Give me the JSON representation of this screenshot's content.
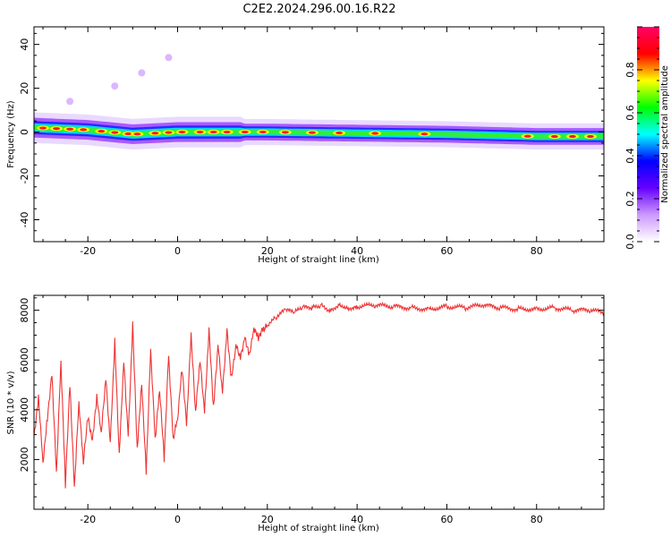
{
  "title": "C2E2.2024.296.00.16.R22",
  "chart_data": [
    {
      "type": "heatmap",
      "xlabel": "Height of straight line (km)",
      "ylabel": "Frequency (Hz)",
      "xlim": [
        -32,
        95
      ],
      "ylim": [
        -50,
        48
      ],
      "xticks": [
        -20,
        0,
        20,
        40,
        60,
        80
      ],
      "yticks": [
        -40,
        -20,
        0,
        20,
        40
      ],
      "colorbar": {
        "label": "Normalized spectral amplitude",
        "range": [
          0.0,
          1.0
        ],
        "ticks": [
          "0.0",
          "0.2",
          "0.4",
          "0.6",
          "0.8"
        ],
        "tick_values": [
          0.0,
          0.2,
          0.4,
          0.6,
          0.8
        ],
        "colormap": [
          "#ffffff",
          "#cc99ff",
          "#6600ff",
          "#0000ff",
          "#00ffff",
          "#00ff00",
          "#ffff00",
          "#ff0000",
          "#ff0066"
        ]
      },
      "ridge": {
        "description_free": true,
        "centre_frequency": [
          [
            -32,
            2
          ],
          [
            -20,
            1
          ],
          [
            -10,
            -1
          ],
          [
            0,
            0
          ],
          [
            20,
            0
          ],
          [
            40,
            -0.5
          ],
          [
            60,
            -1
          ],
          [
            80,
            -2
          ],
          [
            95,
            -2
          ]
        ],
        "peaks": [
          -30,
          -27,
          -24,
          -21,
          -17,
          -14,
          -11,
          -9,
          -5,
          -2,
          1,
          5,
          8,
          11,
          15,
          19,
          24,
          30,
          36,
          44,
          55,
          78,
          84,
          88,
          92
        ]
      },
      "outliers": [
        [
          -24,
          14
        ],
        [
          -14,
          21
        ],
        [
          -8,
          27
        ],
        [
          -2,
          34
        ]
      ]
    },
    {
      "type": "line",
      "xlabel": "Height of straight line (km)",
      "ylabel": "SNR (10 * v/v)",
      "xlim": [
        -32,
        95
      ],
      "ylim": [
        0,
        8600
      ],
      "xticks": [
        -20,
        0,
        20,
        40,
        60,
        80
      ],
      "yticks": [
        2000,
        4000,
        6000,
        8000
      ],
      "series": [
        {
          "color": "#ee3333",
          "x": [
            -32,
            -31,
            -30,
            -29,
            -28,
            -27,
            -26,
            -25,
            -24,
            -23,
            -22,
            -21,
            -20,
            -19,
            -18,
            -17,
            -16,
            -15,
            -14,
            -13,
            -12,
            -11,
            -10,
            -9,
            -8,
            -7,
            -6,
            -5,
            -4,
            -3,
            -2,
            -1,
            0,
            1,
            2,
            3,
            4,
            5,
            6,
            7,
            8,
            9,
            10,
            11,
            12,
            13,
            14,
            15,
            16,
            17,
            18,
            19,
            20,
            22,
            24,
            26,
            28,
            30,
            32,
            34,
            36,
            38,
            40,
            44,
            48,
            52,
            56,
            60,
            64,
            68,
            72,
            76,
            80,
            84,
            88,
            92,
            95
          ],
          "values": [
            3000,
            4600,
            2000,
            3800,
            5500,
            1500,
            6000,
            1000,
            5000,
            800,
            4200,
            1800,
            3600,
            2600,
            4400,
            3000,
            5200,
            2600,
            6700,
            2200,
            6000,
            3000,
            7500,
            2500,
            5200,
            1600,
            6500,
            2900,
            4900,
            2100,
            6200,
            2800,
            3600,
            5600,
            3300,
            6900,
            3800,
            5900,
            3800,
            7100,
            4000,
            6600,
            4700,
            7200,
            5300,
            6700,
            6200,
            7000,
            6300,
            7400,
            7000,
            7300,
            7400,
            7700,
            8000,
            7900,
            8100,
            8100,
            8200,
            8000,
            8250,
            8100,
            8150,
            8200,
            8150,
            8100,
            8050,
            8150,
            8100,
            8200,
            8100,
            8050,
            8050,
            8100,
            8000,
            8000,
            7900
          ]
        }
      ]
    }
  ]
}
